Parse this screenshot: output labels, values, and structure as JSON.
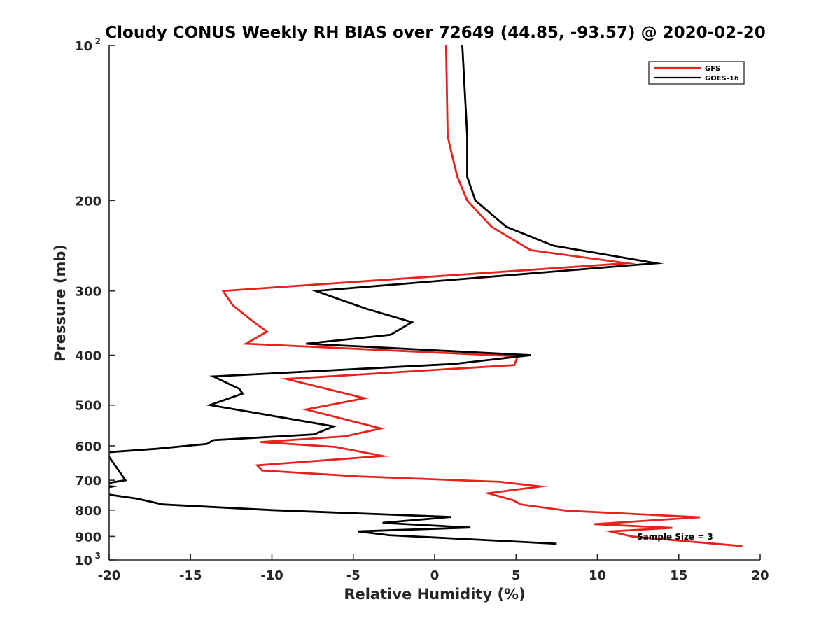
{
  "chart_data": {
    "type": "line",
    "title": "Cloudy CONUS Weekly RH BIAS over 72649 (44.85, -93.57) @ 2020-02-20",
    "xlabel": "Relative Humidity (%)",
    "ylabel": "Pressure (mb)",
    "xlim": [
      -20,
      20
    ],
    "ylim": [
      100,
      1000
    ],
    "y_scale": "log",
    "y_reversed": true,
    "grid": false,
    "legend_position": "top-right",
    "x_ticks": [
      -20,
      -15,
      -10,
      -5,
      0,
      5,
      10,
      15,
      20
    ],
    "x_tick_labels": [
      "-20",
      "-15",
      "-10",
      "-5",
      "0",
      "5",
      "10",
      "15",
      "20"
    ],
    "y_ticks": [
      {
        "value": 100,
        "label": "10",
        "sup": "2"
      },
      {
        "value": 200,
        "label": "200",
        "sup": ""
      },
      {
        "value": 300,
        "label": "300",
        "sup": ""
      },
      {
        "value": 400,
        "label": "400",
        "sup": ""
      },
      {
        "value": 500,
        "label": "500",
        "sup": ""
      },
      {
        "value": 600,
        "label": "600",
        "sup": ""
      },
      {
        "value": 700,
        "label": "700",
        "sup": ""
      },
      {
        "value": 800,
        "label": "800",
        "sup": ""
      },
      {
        "value": 900,
        "label": "900",
        "sup": ""
      },
      {
        "value": 1000,
        "label": "10",
        "sup": "3"
      }
    ],
    "series": [
      {
        "name": "GFS",
        "color": "#e8211a",
        "points": [
          [
            0.7,
            100
          ],
          [
            0.8,
            150
          ],
          [
            1.0,
            160
          ],
          [
            1.4,
            180
          ],
          [
            2.0,
            200
          ],
          [
            3.5,
            225
          ],
          [
            5.9,
            250
          ],
          [
            11.8,
            265
          ],
          [
            -13.0,
            300
          ],
          [
            -12.4,
            320
          ],
          [
            -11.1,
            345
          ],
          [
            -10.3,
            360
          ],
          [
            -11.6,
            380
          ],
          [
            5.1,
            402
          ],
          [
            4.9,
            418
          ],
          [
            -9.1,
            445
          ],
          [
            -4.3,
            485
          ],
          [
            -7.9,
            510
          ],
          [
            -3.3,
            555
          ],
          [
            -5.5,
            575
          ],
          [
            -10.7,
            590
          ],
          [
            -6.1,
            603
          ],
          [
            -3.2,
            628
          ],
          [
            -10.9,
            655
          ],
          [
            -10.6,
            670
          ],
          [
            -4.7,
            688
          ],
          [
            4.0,
            705
          ],
          [
            6.5,
            720
          ],
          [
            3.3,
            742
          ],
          [
            4.8,
            765
          ],
          [
            5.3,
            780
          ],
          [
            8.1,
            802
          ],
          [
            16.3,
            826
          ],
          [
            9.8,
            852
          ],
          [
            14.6,
            866
          ],
          [
            10.8,
            880
          ],
          [
            12.1,
            900
          ],
          [
            18.9,
            940
          ]
        ]
      },
      {
        "name": "GOES-16",
        "color": "#000000",
        "points": [
          [
            1.7,
            100
          ],
          [
            2.0,
            150
          ],
          [
            2.0,
            180
          ],
          [
            2.5,
            200
          ],
          [
            4.4,
            225
          ],
          [
            7.3,
            245
          ],
          [
            13.6,
            265
          ],
          [
            -7.3,
            300
          ],
          [
            -4.2,
            325
          ],
          [
            -1.4,
            345
          ],
          [
            -2.7,
            365
          ],
          [
            -7.9,
            380
          ],
          [
            5.9,
            400
          ],
          [
            1.2,
            416
          ],
          [
            -13.6,
            440
          ],
          [
            -12.0,
            465
          ],
          [
            -11.8,
            475
          ],
          [
            -13.8,
            500
          ],
          [
            -6.2,
            550
          ],
          [
            -7.4,
            570
          ],
          [
            -13.6,
            585
          ],
          [
            -14.0,
            595
          ],
          [
            -17.1,
            608
          ],
          [
            -20.2,
            618
          ],
          [
            -19.0,
            700
          ],
          [
            -20.2,
            710
          ],
          [
            -20.2,
            718
          ],
          [
            -19.8,
            720
          ],
          [
            -20.2,
            724
          ],
          [
            -20.2,
            745
          ],
          [
            -18.3,
            760
          ],
          [
            -16.7,
            780
          ],
          [
            -10.0,
            800
          ],
          [
            1.0,
            825
          ],
          [
            -3.2,
            847
          ],
          [
            2.2,
            865
          ],
          [
            -4.7,
            880
          ],
          [
            -2.8,
            895
          ],
          [
            7.5,
            930
          ]
        ]
      }
    ],
    "annotation": "Sample Size = 3"
  }
}
